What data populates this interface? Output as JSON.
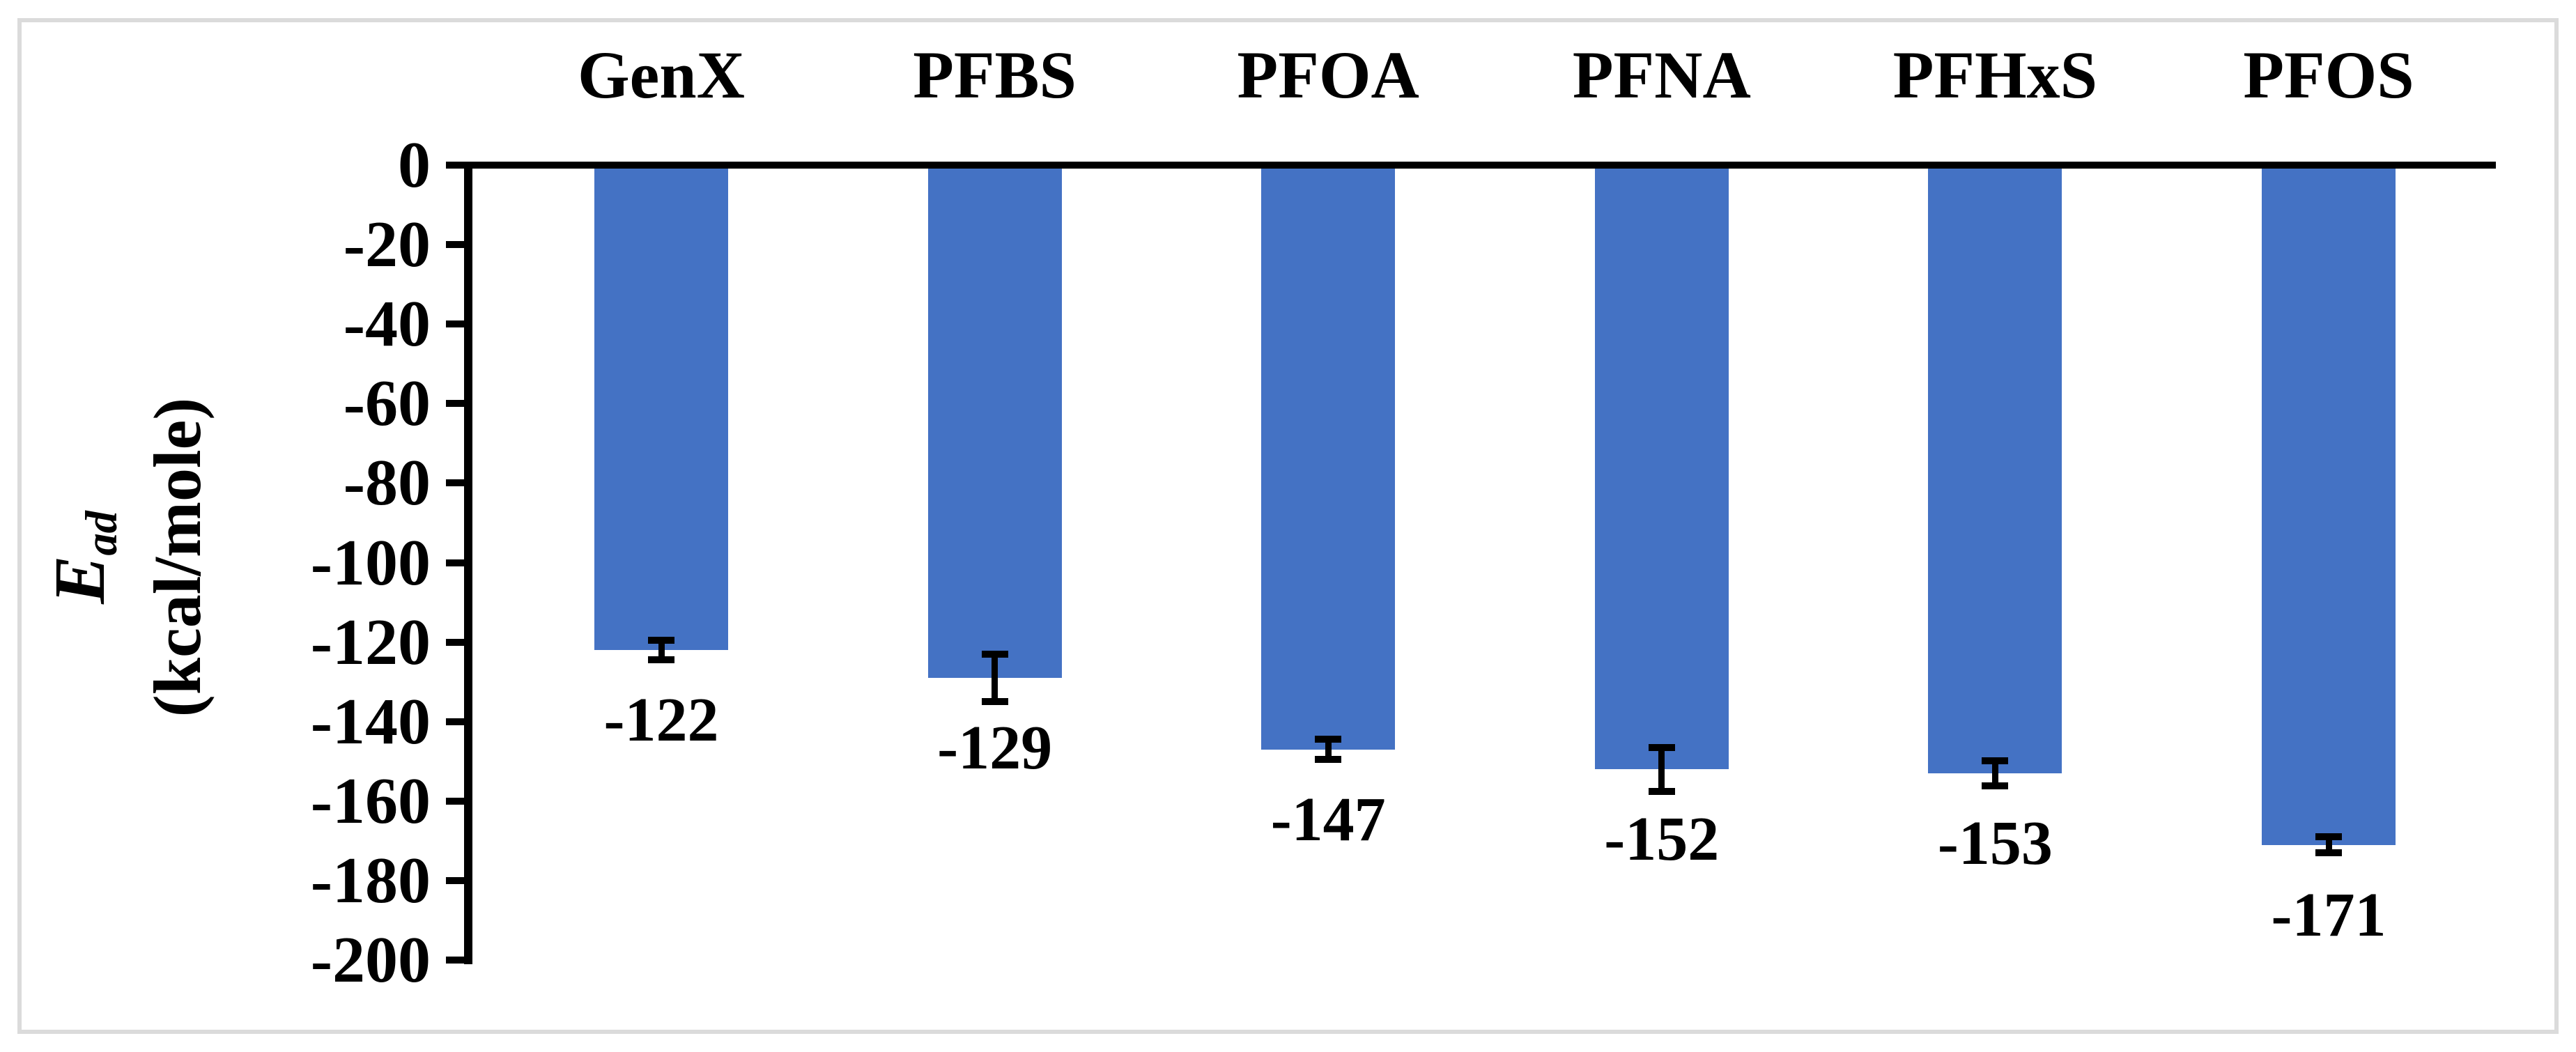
{
  "figure": {
    "background_color": "#FFFFFF",
    "border_color": "#DBDBDB"
  },
  "y_axis": {
    "label_e": "E",
    "label_sub": "ad",
    "label_units": "(kcal/mole)",
    "min": -200,
    "max": 0,
    "tick_step": 20,
    "ticks": [
      "0",
      "-20",
      "-40",
      "-60",
      "-80",
      "-100",
      "-120",
      "-140",
      "-160",
      "-180",
      "-200"
    ]
  },
  "chart_data": {
    "type": "bar",
    "categories": [
      "GenX",
      "PFBS",
      "PFOA",
      "PFNA",
      "PFHxS",
      "PFOS"
    ],
    "values": [
      -122,
      -129,
      -147,
      -152,
      -153,
      -171
    ],
    "data_labels": [
      "-122",
      "-129",
      "-147",
      "-152",
      "-153",
      "-171"
    ],
    "error_bars": [
      2.5,
      6,
      2.5,
      5.5,
      3.2,
      2
    ],
    "title": "",
    "xlabel": "",
    "ylabel": "E_ad (kcal/mole)",
    "ylim": [
      -200,
      0
    ],
    "grid": false,
    "legend": "none",
    "category_labels_position": "top",
    "bar_color": "#4472C4",
    "error_bar_color": "#000000",
    "axis_color": "#000000"
  }
}
